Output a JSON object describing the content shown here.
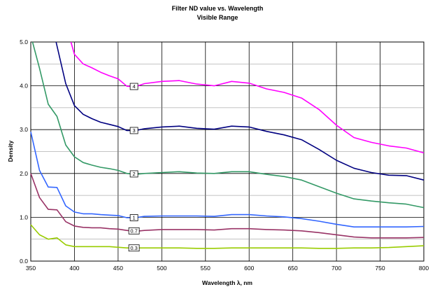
{
  "chart_data": {
    "type": "line",
    "title": "Filter ND value vs. Wavelength",
    "subtitle": "Visible Range",
    "xlabel": "Wavelength λ, nm",
    "ylabel": "Density",
    "xlim": [
      350,
      800
    ],
    "ylim": [
      0,
      5
    ],
    "x_ticks": [
      "350",
      "400",
      "450",
      "500",
      "550",
      "600",
      "650",
      "700",
      "750",
      "800"
    ],
    "y_ticks": [
      "0.0",
      "1.0",
      "2.0",
      "3.0",
      "4.0",
      "5.0"
    ],
    "grid": true,
    "series": [
      {
        "name": "0.3",
        "color": "#99cc00",
        "label_x": 465,
        "points": [
          [
            350,
            0.83
          ],
          [
            360,
            0.6
          ],
          [
            370,
            0.5
          ],
          [
            380,
            0.53
          ],
          [
            390,
            0.37
          ],
          [
            400,
            0.33
          ],
          [
            420,
            0.33
          ],
          [
            440,
            0.33
          ],
          [
            460,
            0.3
          ],
          [
            480,
            0.3
          ],
          [
            500,
            0.3
          ],
          [
            520,
            0.3
          ],
          [
            540,
            0.29
          ],
          [
            560,
            0.29
          ],
          [
            580,
            0.3
          ],
          [
            600,
            0.3
          ],
          [
            620,
            0.3
          ],
          [
            640,
            0.3
          ],
          [
            660,
            0.3
          ],
          [
            680,
            0.29
          ],
          [
            700,
            0.29
          ],
          [
            720,
            0.3
          ],
          [
            740,
            0.3
          ],
          [
            760,
            0.31
          ],
          [
            780,
            0.33
          ],
          [
            800,
            0.35
          ]
        ]
      },
      {
        "name": "0.7",
        "color": "#993366",
        "label_x": 465,
        "points": [
          [
            350,
            2.0
          ],
          [
            360,
            1.45
          ],
          [
            370,
            1.18
          ],
          [
            380,
            1.17
          ],
          [
            390,
            0.9
          ],
          [
            400,
            0.8
          ],
          [
            410,
            0.77
          ],
          [
            420,
            0.76
          ],
          [
            430,
            0.76
          ],
          [
            440,
            0.74
          ],
          [
            450,
            0.73
          ],
          [
            460,
            0.7
          ],
          [
            470,
            0.68
          ],
          [
            480,
            0.7
          ],
          [
            500,
            0.72
          ],
          [
            520,
            0.72
          ],
          [
            540,
            0.72
          ],
          [
            560,
            0.71
          ],
          [
            580,
            0.74
          ],
          [
            600,
            0.74
          ],
          [
            620,
            0.72
          ],
          [
            640,
            0.71
          ],
          [
            660,
            0.69
          ],
          [
            680,
            0.65
          ],
          [
            700,
            0.6
          ],
          [
            720,
            0.55
          ],
          [
            740,
            0.53
          ],
          [
            760,
            0.53
          ],
          [
            780,
            0.53
          ],
          [
            800,
            0.54
          ]
        ]
      },
      {
        "name": "1",
        "color": "#3366ff",
        "label_x": 465,
        "points": [
          [
            350,
            2.95
          ],
          [
            360,
            2.07
          ],
          [
            370,
            1.69
          ],
          [
            380,
            1.68
          ],
          [
            390,
            1.26
          ],
          [
            400,
            1.12
          ],
          [
            410,
            1.08
          ],
          [
            420,
            1.08
          ],
          [
            430,
            1.06
          ],
          [
            440,
            1.05
          ],
          [
            450,
            1.04
          ],
          [
            460,
            0.99
          ],
          [
            470,
            0.99
          ],
          [
            480,
            1.02
          ],
          [
            500,
            1.03
          ],
          [
            520,
            1.03
          ],
          [
            540,
            1.03
          ],
          [
            560,
            1.02
          ],
          [
            580,
            1.06
          ],
          [
            600,
            1.06
          ],
          [
            620,
            1.03
          ],
          [
            640,
            1.01
          ],
          [
            660,
            0.97
          ],
          [
            680,
            0.91
          ],
          [
            700,
            0.84
          ],
          [
            720,
            0.78
          ],
          [
            740,
            0.78
          ],
          [
            760,
            0.78
          ],
          [
            780,
            0.78
          ],
          [
            800,
            0.79
          ]
        ]
      },
      {
        "name": "2",
        "color": "#339966",
        "label_x": 465,
        "points": [
          [
            352,
            5.0
          ],
          [
            360,
            4.4
          ],
          [
            370,
            3.58
          ],
          [
            380,
            3.3
          ],
          [
            390,
            2.65
          ],
          [
            400,
            2.38
          ],
          [
            410,
            2.25
          ],
          [
            420,
            2.19
          ],
          [
            430,
            2.14
          ],
          [
            440,
            2.11
          ],
          [
            450,
            2.07
          ],
          [
            460,
            2.0
          ],
          [
            470,
            1.98
          ],
          [
            480,
            2.0
          ],
          [
            500,
            2.02
          ],
          [
            520,
            2.04
          ],
          [
            540,
            2.01
          ],
          [
            560,
            2.0
          ],
          [
            580,
            2.04
          ],
          [
            600,
            2.04
          ],
          [
            620,
            1.98
          ],
          [
            640,
            1.93
          ],
          [
            660,
            1.85
          ],
          [
            680,
            1.7
          ],
          [
            700,
            1.55
          ],
          [
            720,
            1.42
          ],
          [
            740,
            1.37
          ],
          [
            760,
            1.33
          ],
          [
            780,
            1.3
          ],
          [
            800,
            1.22
          ]
        ]
      },
      {
        "name": "3",
        "color": "#000080",
        "label_x": 465,
        "points": [
          [
            379,
            5.0
          ],
          [
            390,
            4.05
          ],
          [
            400,
            3.55
          ],
          [
            410,
            3.35
          ],
          [
            420,
            3.25
          ],
          [
            430,
            3.17
          ],
          [
            440,
            3.12
          ],
          [
            450,
            3.07
          ],
          [
            460,
            2.98
          ],
          [
            470,
            2.98
          ],
          [
            480,
            3.02
          ],
          [
            500,
            3.06
          ],
          [
            520,
            3.08
          ],
          [
            540,
            3.03
          ],
          [
            560,
            3.01
          ],
          [
            580,
            3.08
          ],
          [
            600,
            3.06
          ],
          [
            620,
            2.96
          ],
          [
            640,
            2.88
          ],
          [
            660,
            2.77
          ],
          [
            680,
            2.55
          ],
          [
            700,
            2.3
          ],
          [
            720,
            2.12
          ],
          [
            740,
            2.02
          ],
          [
            760,
            1.96
          ],
          [
            780,
            1.95
          ],
          [
            800,
            1.85
          ]
        ]
      },
      {
        "name": "4",
        "color": "#ff00ff",
        "label_x": 465,
        "points": [
          [
            396,
            5.0
          ],
          [
            400,
            4.72
          ],
          [
            410,
            4.5
          ],
          [
            420,
            4.41
          ],
          [
            430,
            4.31
          ],
          [
            440,
            4.23
          ],
          [
            450,
            4.16
          ],
          [
            460,
            3.99
          ],
          [
            470,
            3.98
          ],
          [
            480,
            4.05
          ],
          [
            500,
            4.1
          ],
          [
            520,
            4.12
          ],
          [
            540,
            4.04
          ],
          [
            560,
            4.0
          ],
          [
            580,
            4.1
          ],
          [
            600,
            4.06
          ],
          [
            620,
            3.93
          ],
          [
            640,
            3.85
          ],
          [
            660,
            3.72
          ],
          [
            680,
            3.46
          ],
          [
            700,
            3.1
          ],
          [
            720,
            2.82
          ],
          [
            740,
            2.71
          ],
          [
            760,
            2.63
          ],
          [
            780,
            2.58
          ],
          [
            800,
            2.47
          ]
        ]
      }
    ]
  }
}
